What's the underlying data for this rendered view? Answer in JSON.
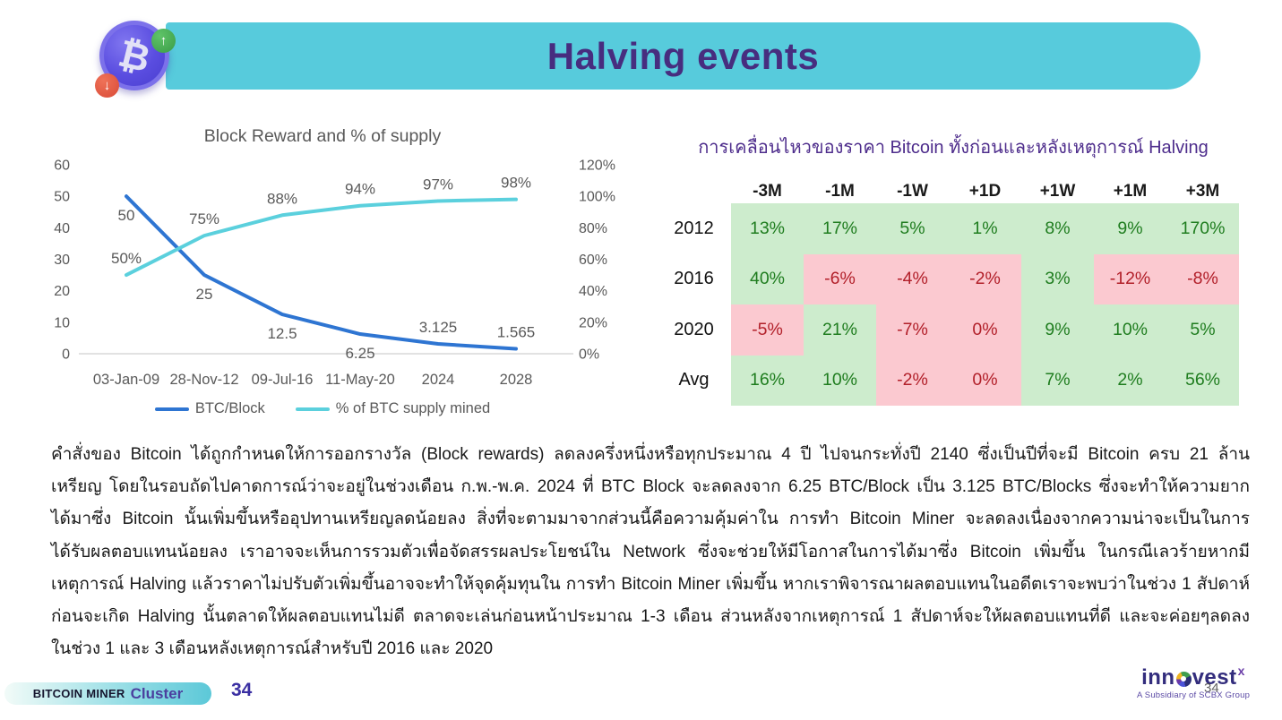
{
  "header": {
    "title": "Halving events",
    "banner_color": "#57cbdc",
    "title_color": "#472d7f",
    "coin_icon": "bitcoin-coin-icon",
    "coin_symbol": "₿",
    "up_arrow": "↑",
    "down_arrow": "↓"
  },
  "chart_data": {
    "type": "line",
    "title": "Block Reward and % of supply",
    "categories": [
      "03-Jan-09",
      "28-Nov-12",
      "09-Jul-16",
      "11-May-20",
      "2024",
      "2028"
    ],
    "series": [
      {
        "name": "BTC/Block",
        "axis": "left",
        "color": "#2e75d2",
        "values": [
          50,
          25,
          12.5,
          6.25,
          3.125,
          1.565
        ],
        "labels": [
          "50",
          "25",
          "12.5",
          "6.25",
          "3.125",
          "1.565"
        ],
        "label_positions": [
          "below",
          "below",
          "below",
          "below",
          "above",
          "above"
        ]
      },
      {
        "name": "% of BTC supply mined",
        "axis": "right",
        "color": "#5bd0dd",
        "values": [
          50,
          75,
          88,
          94,
          97,
          98
        ],
        "labels": [
          "50%",
          "75%",
          "88%",
          "94%",
          "97%",
          "98%"
        ],
        "label_positions": [
          "above",
          "above",
          "above",
          "above",
          "above",
          "above"
        ]
      }
    ],
    "left_axis": {
      "min": 0,
      "max": 60,
      "ticks": [
        "60",
        "50",
        "40",
        "30",
        "20",
        "10",
        "0"
      ]
    },
    "right_axis": {
      "min": 0,
      "max": 120,
      "ticks": [
        "120%",
        "100%",
        "80%",
        "60%",
        "40%",
        "20%",
        "0%"
      ]
    },
    "legend_position": "bottom",
    "grid": false
  },
  "table": {
    "title": "การเคลื่อนไหวของราคา Bitcoin ทั้งก่อนและหลังเหตุการณ์ Halving",
    "columns": [
      "-3M",
      "-1M",
      "-1W",
      "+1D",
      "+1W",
      "+1M",
      "+3M"
    ],
    "rows": [
      {
        "label": "2012",
        "cells": [
          {
            "value": "13%",
            "state": "positive"
          },
          {
            "value": "17%",
            "state": "positive"
          },
          {
            "value": "5%",
            "state": "positive"
          },
          {
            "value": "1%",
            "state": "positive"
          },
          {
            "value": "8%",
            "state": "positive"
          },
          {
            "value": "9%",
            "state": "positive"
          },
          {
            "value": "170%",
            "state": "positive"
          }
        ]
      },
      {
        "label": "2016",
        "cells": [
          {
            "value": "40%",
            "state": "positive"
          },
          {
            "value": "-6%",
            "state": "negative"
          },
          {
            "value": "-4%",
            "state": "negative"
          },
          {
            "value": "-2%",
            "state": "negative"
          },
          {
            "value": "3%",
            "state": "positive"
          },
          {
            "value": "-12%",
            "state": "negative"
          },
          {
            "value": "-8%",
            "state": "negative"
          }
        ]
      },
      {
        "label": "2020",
        "cells": [
          {
            "value": "-5%",
            "state": "negative"
          },
          {
            "value": "21%",
            "state": "positive"
          },
          {
            "value": "-7%",
            "state": "negative"
          },
          {
            "value": "0%",
            "state": "negative"
          },
          {
            "value": "9%",
            "state": "positive"
          },
          {
            "value": "10%",
            "state": "positive"
          },
          {
            "value": "5%",
            "state": "positive"
          }
        ]
      },
      {
        "label": "Avg",
        "cells": [
          {
            "value": "16%",
            "state": "positive"
          },
          {
            "value": "10%",
            "state": "positive"
          },
          {
            "value": "-2%",
            "state": "negative"
          },
          {
            "value": "0%",
            "state": "negative"
          },
          {
            "value": "7%",
            "state": "positive"
          },
          {
            "value": "2%",
            "state": "positive"
          },
          {
            "value": "56%",
            "state": "positive"
          }
        ]
      }
    ],
    "colors": {
      "positive_bg": "#cdeccd",
      "negative_bg": "#fbc9d0",
      "positive_text": "#1f7d1f",
      "negative_text": "#b2202a"
    }
  },
  "paragraph": {
    "lines": [
      "คำสั่งของ Bitcoin ได้ถูกกำหนดให้การออกรางวัล (Block rewards) ลดลงครึ่งหนึ่งหรือทุกประมาณ 4 ปี ไปจนกระทั่งปี 2140 ซึ่งเป็นปีที่จะมี Bitcoin ครบ 21 ล้าน",
      "เหรียญ โดยในรอบถัดไปคาดการณ์ว่าจะอยู่ในช่วงเดือน ก.พ.-พ.ค. 2024 ที่ BTC Block จะลดลงจาก 6.25 BTC/Block เป็น 3.125 BTC/Blocks ซึ่งจะทำให้ความยาก",
      "ได้มาซึ่ง Bitcoin นั้นเพิ่มขึ้นหรืออุปทานเหรียญลดน้อยลง สิ่งที่จะตามมาจากส่วนนี้คือความคุ้มค่าใน การทำ Bitcoin Miner จะลดลงเนื่องจากความน่าจะเป็นในการ",
      "ได้รับผลตอบแทนน้อยลง เราอาจจะเห็นการรวมตัวเพื่อจัดสรรผลประโยชน์ใน Network ซึ่งจะช่วยให้มีโอกาสในการได้มาซึ่ง Bitcoin เพิ่มขึ้น ในกรณีเลวร้ายหากมี",
      "เหตุการณ์ Halving แล้วราคาไม่ปรับตัวเพิ่มขึ้นอาจจะทำให้จุดคุ้มทุนใน การทำ Bitcoin Miner เพิ่มขึ้น หากเราพิจารณาผลตอบแทนในอดีตเราจะพบว่าในช่วง 1 สัปดาห์",
      "ก่อนจะเกิด Halving นั้นตลาดให้ผลตอบแทนไม่ดี ตลาดจะเล่นก่อนหน้าประมาณ 1-3 เดือน ส่วนหลังจากเหตุการณ์ 1 สัปดาห์จะให้ผลตอบแทนที่ดี และจะค่อยๆลดลง",
      "ในช่วง 1 และ 3 เดือนหลังเหตุการณ์สำหรับปี 2016 และ 2020"
    ]
  },
  "footer": {
    "cluster_badge": {
      "prefix": "BITCOIN MINER",
      "name": "Cluster"
    },
    "page_number": "34",
    "logo": {
      "name_pre": "inn",
      "name_post": "vest",
      "superscript": "x",
      "subtitle": "A Subsidiary of SCBX Group",
      "watermark": "34"
    }
  }
}
